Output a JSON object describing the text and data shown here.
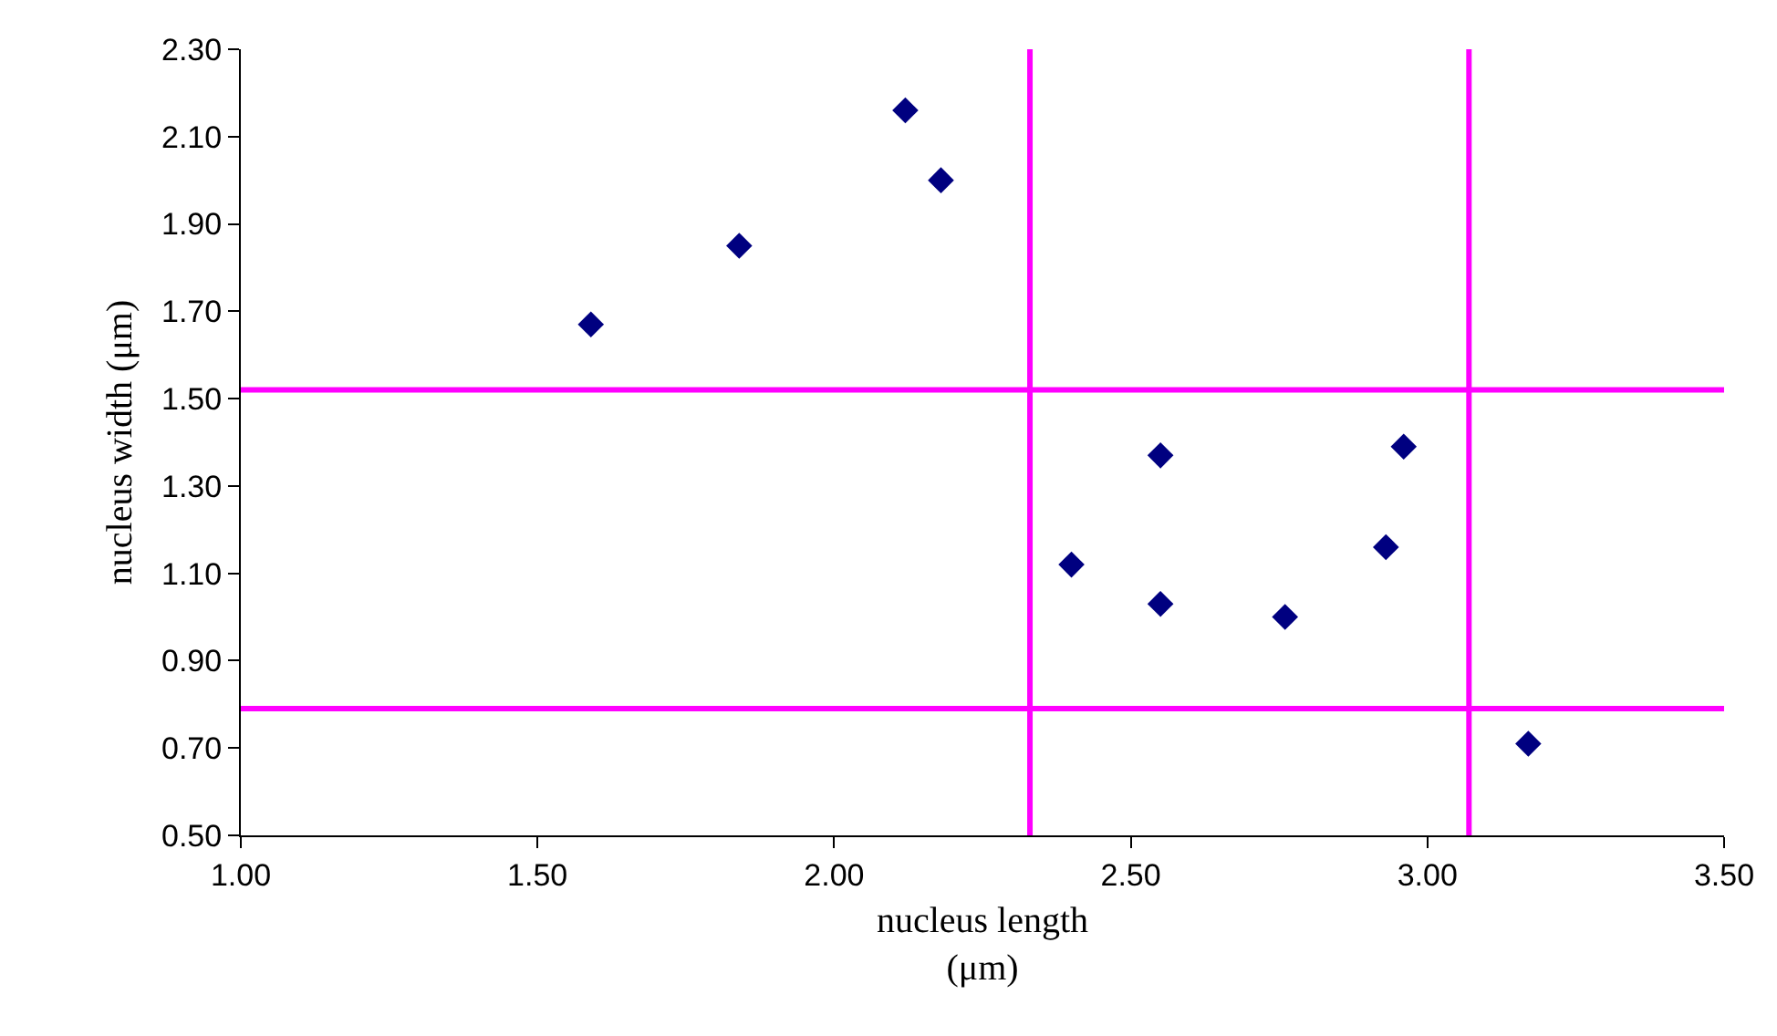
{
  "chart_data": {
    "type": "scatter",
    "xlabel": "nucleus length\n(μm)",
    "ylabel": "nucleus width (μm)",
    "x": [
      1.59,
      1.84,
      2.12,
      2.18,
      2.4,
      2.55,
      2.55,
      2.76,
      2.93,
      2.96,
      3.17
    ],
    "series": [
      {
        "color": "#000080",
        "values": [
          1.67,
          1.85,
          2.16,
          2.0,
          1.12,
          1.37,
          1.03,
          1.0,
          1.16,
          1.39,
          0.71
        ]
      }
    ],
    "marker": "diamond",
    "xlim": [
      1.0,
      3.5
    ],
    "xticks": [
      {
        "value": 1.0,
        "label": "1.00"
      },
      {
        "value": 1.5,
        "label": "1.50"
      },
      {
        "value": 2.0,
        "label": "2.00"
      },
      {
        "value": 2.5,
        "label": "2.50"
      },
      {
        "value": 3.0,
        "label": "3.00"
      },
      {
        "value": 3.5,
        "label": "3.50"
      }
    ],
    "ylim": [
      0.5,
      2.3
    ],
    "yticks": [
      {
        "value": 0.5,
        "label": "0.50"
      },
      {
        "value": 0.7,
        "label": "0.70"
      },
      {
        "value": 0.9,
        "label": "0.90"
      },
      {
        "value": 1.1,
        "label": "1.10"
      },
      {
        "value": 1.3,
        "label": "1.30"
      },
      {
        "value": 1.5,
        "label": "1.50"
      },
      {
        "value": 1.7,
        "label": "1.70"
      },
      {
        "value": 1.9,
        "label": "1.90"
      },
      {
        "value": 2.1,
        "label": "2.10"
      },
      {
        "value": 2.3,
        "label": "2.30"
      }
    ],
    "ref_lines": [
      {
        "axis": "x",
        "value": 2.33,
        "color": "#ff00ff"
      },
      {
        "axis": "x",
        "value": 3.07,
        "color": "#ff00ff"
      },
      {
        "axis": "y",
        "value": 1.52,
        "color": "#ff00ff"
      },
      {
        "axis": "y",
        "value": 0.79,
        "color": "#ff00ff"
      }
    ]
  }
}
